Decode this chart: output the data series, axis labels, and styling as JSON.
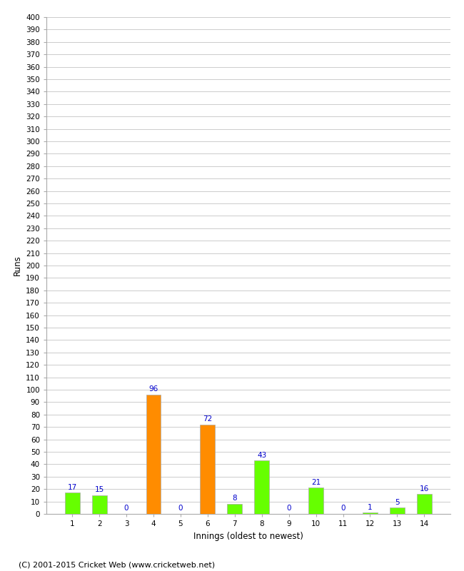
{
  "title": "",
  "xlabel": "Innings (oldest to newest)",
  "ylabel": "Runs",
  "categories": [
    "1",
    "2",
    "3",
    "4",
    "5",
    "6",
    "7",
    "8",
    "9",
    "10",
    "11",
    "12",
    "13",
    "14"
  ],
  "values": [
    17,
    15,
    0,
    96,
    0,
    72,
    8,
    43,
    0,
    21,
    0,
    1,
    5,
    16
  ],
  "colors": [
    "#66ff00",
    "#66ff00",
    "#66ff00",
    "#ff8c00",
    "#66ff00",
    "#ff8c00",
    "#66ff00",
    "#66ff00",
    "#66ff00",
    "#66ff00",
    "#66ff00",
    "#66ff00",
    "#66ff00",
    "#66ff00"
  ],
  "ylim": [
    0,
    400
  ],
  "ytick_step": 10,
  "bar_edge_color": "#aaaaaa",
  "grid_color": "#cccccc",
  "label_color": "#0000cc",
  "label_fontsize": 7.5,
  "axis_tick_fontsize": 7.5,
  "axis_label_fontsize": 8.5,
  "footer": "(C) 2001-2015 Cricket Web (www.cricketweb.net)",
  "footer_fontsize": 8,
  "background_color": "#ffffff",
  "bar_width": 0.55
}
